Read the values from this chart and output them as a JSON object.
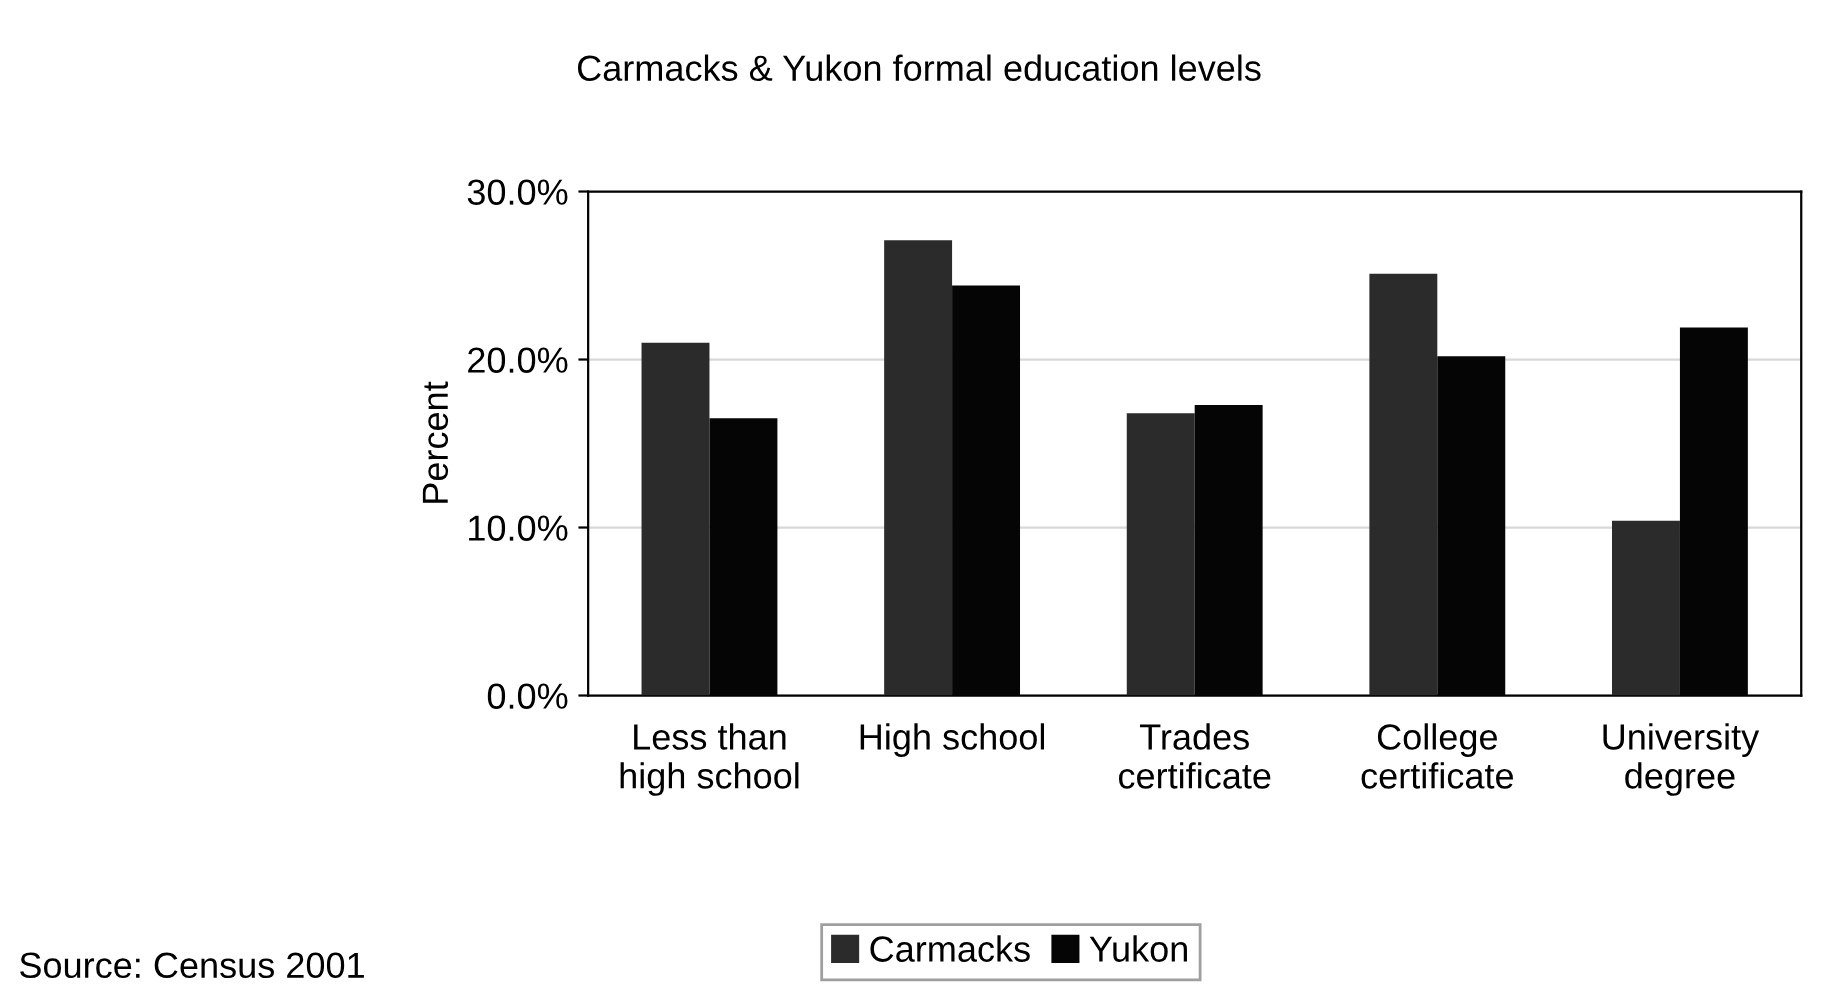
{
  "chart_data": {
    "type": "bar",
    "title": "Carmacks & Yukon formal education levels",
    "categories": [
      "Less than\nhigh school",
      "High school",
      "Trades\ncertificate",
      "College\ncertificate",
      "University\ndegree"
    ],
    "series": [
      {
        "name": "Carmacks",
        "color": "#2b2b2b",
        "values": [
          21.0,
          27.1,
          16.8,
          25.1,
          10.4
        ]
      },
      {
        "name": "Yukon",
        "color": "#050505",
        "values": [
          16.5,
          24.4,
          17.3,
          20.2,
          21.9
        ]
      }
    ],
    "ylabel": "Percent",
    "ylim": [
      0,
      30
    ],
    "yticks": [
      {
        "value": 0,
        "label": "0.0%"
      },
      {
        "value": 10,
        "label": "10.0%"
      },
      {
        "value": 20,
        "label": "20.0%"
      },
      {
        "value": 30,
        "label": "30.0%"
      }
    ],
    "grid": "y",
    "legend": "bottom",
    "annotations": [
      "Source: Census 2001"
    ]
  }
}
